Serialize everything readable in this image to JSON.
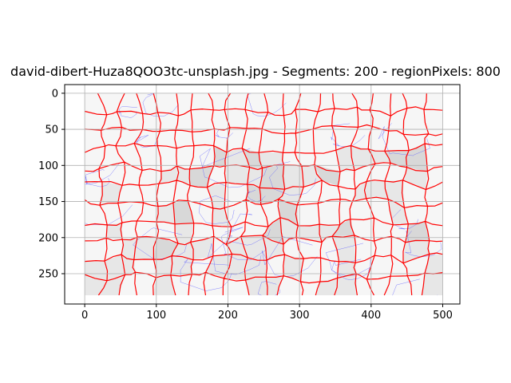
{
  "chart_data": {
    "type": "image-plot",
    "title": "david-dibert-Huza8QOO3tc-unsplash.jpg - Segments: 200 - regionPixels: 800",
    "xlabel": "",
    "ylabel": "",
    "xlim": [
      -28,
      524
    ],
    "ylim": [
      292,
      -12
    ],
    "image_extent": {
      "width": 500,
      "height": 280
    },
    "x_ticks": [
      0,
      100,
      200,
      300,
      400,
      500
    ],
    "y_ticks": [
      0,
      50,
      100,
      150,
      200,
      250
    ],
    "x_tick_labels": [
      "0",
      "100",
      "200",
      "300",
      "400",
      "500"
    ],
    "y_tick_labels": [
      "0",
      "50",
      "100",
      "150",
      "200",
      "250"
    ],
    "grid": true,
    "segment_grid": {
      "columns": 20,
      "rows": 11
    },
    "colors": {
      "segment_boundary": "#ff0000",
      "contour_lines": "#5555ff",
      "grid": "#b0b0b0",
      "image_light": "#f6f6f6",
      "image_mid": "#e7e7e7",
      "image_dark": "#d8d8d8"
    }
  }
}
